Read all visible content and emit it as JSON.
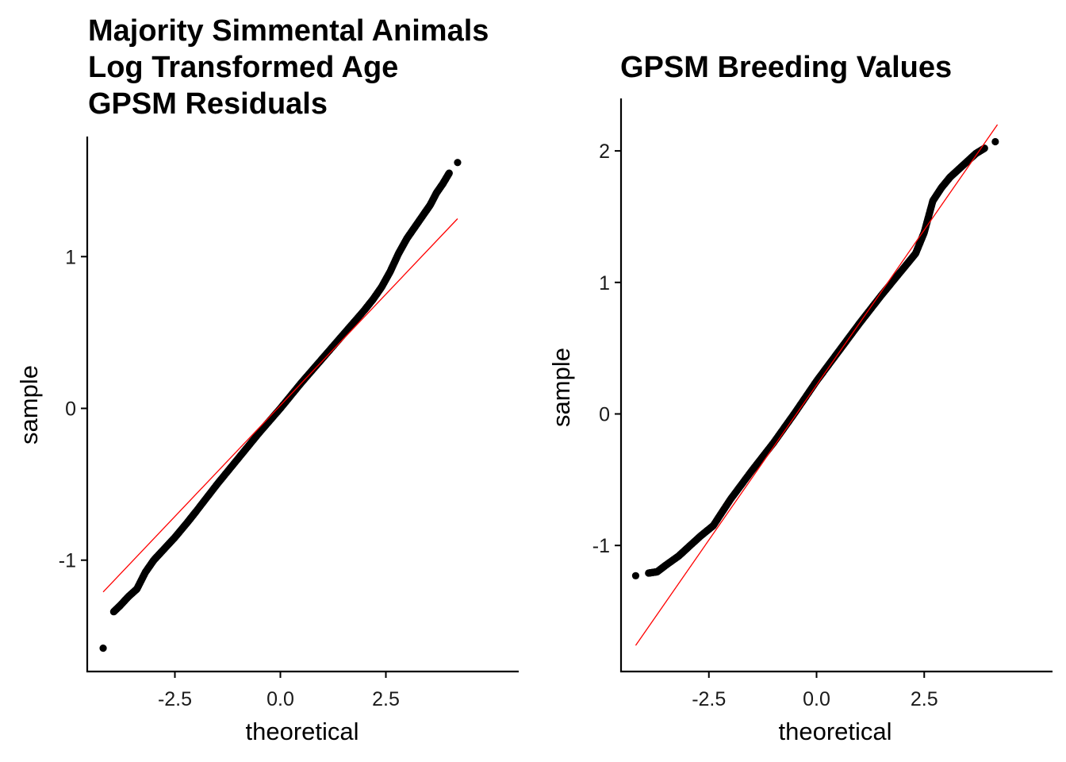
{
  "chart_data": [
    {
      "type": "scatter",
      "subtype": "qq-plot",
      "title": [
        "Majority Simmental Animals",
        "Log Transformed Age",
        "GPSM Residuals"
      ],
      "xlabel": "theoretical",
      "ylabel": "sample",
      "xlim": [
        -4.3,
        4.3
      ],
      "ylim": [
        -1.72,
        1.78
      ],
      "xticks": [
        -2.5,
        0.0,
        2.5
      ],
      "xtick_labels": [
        "-2.5",
        "0.0",
        "2.5"
      ],
      "yticks": [
        -1,
        0,
        1
      ],
      "ytick_labels": [
        "-1",
        "0",
        "1"
      ],
      "grid": false,
      "point_color": "#000000",
      "line_color": "#FF0000",
      "reference_line": {
        "x": [
          -4.2,
          4.2
        ],
        "y": [
          -1.21,
          1.25
        ]
      },
      "points": {
        "x": [
          -4.2,
          -3.95,
          -3.8,
          -3.6,
          -3.4,
          -3.2,
          -3.0,
          -2.8,
          -2.5,
          -2.2,
          -2.0,
          -1.5,
          -1.0,
          -0.5,
          0.0,
          0.5,
          1.0,
          1.5,
          2.0,
          2.2,
          2.4,
          2.6,
          2.8,
          3.0,
          3.2,
          3.4,
          3.55,
          3.7,
          3.85,
          4.0,
          4.2
        ],
        "y": [
          -1.58,
          -1.34,
          -1.3,
          -1.24,
          -1.19,
          -1.08,
          -1.0,
          -0.94,
          -0.85,
          -0.75,
          -0.68,
          -0.5,
          -0.33,
          -0.16,
          0.0,
          0.17,
          0.33,
          0.49,
          0.65,
          0.72,
          0.8,
          0.9,
          1.02,
          1.12,
          1.2,
          1.28,
          1.34,
          1.42,
          1.48,
          1.55,
          1.62
        ]
      }
    },
    {
      "type": "scatter",
      "subtype": "qq-plot",
      "title": [
        "GPSM Breeding Values"
      ],
      "xlabel": "theoretical",
      "ylabel": "sample",
      "xlim": [
        -4.3,
        4.3
      ],
      "ylim": [
        -1.95,
        2.4
      ],
      "xticks": [
        -2.5,
        0.0,
        2.5
      ],
      "xtick_labels": [
        "-2.5",
        "0.0",
        "2.5"
      ],
      "yticks": [
        -1,
        0,
        1,
        2
      ],
      "ytick_labels": [
        "-1",
        "0",
        "1",
        "2"
      ],
      "grid": false,
      "point_color": "#000000",
      "line_color": "#FF0000",
      "reference_line": {
        "x": [
          -4.2,
          4.2
        ],
        "y": [
          -1.76,
          2.2
        ]
      },
      "points": {
        "x": [
          -4.2,
          -3.9,
          -3.7,
          -3.5,
          -3.2,
          -3.0,
          -2.7,
          -2.4,
          -2.0,
          -1.5,
          -1.0,
          -0.5,
          0.0,
          0.5,
          1.0,
          1.5,
          2.0,
          2.3,
          2.5,
          2.7,
          2.9,
          3.1,
          3.3,
          3.5,
          3.7,
          3.9,
          4.15
        ],
        "y": [
          -1.23,
          -1.21,
          -1.2,
          -1.15,
          -1.08,
          -1.02,
          -0.93,
          -0.85,
          -0.65,
          -0.43,
          -0.22,
          0.01,
          0.25,
          0.47,
          0.69,
          0.9,
          1.1,
          1.22,
          1.38,
          1.62,
          1.72,
          1.8,
          1.86,
          1.92,
          1.98,
          2.02,
          2.07
        ]
      }
    }
  ]
}
